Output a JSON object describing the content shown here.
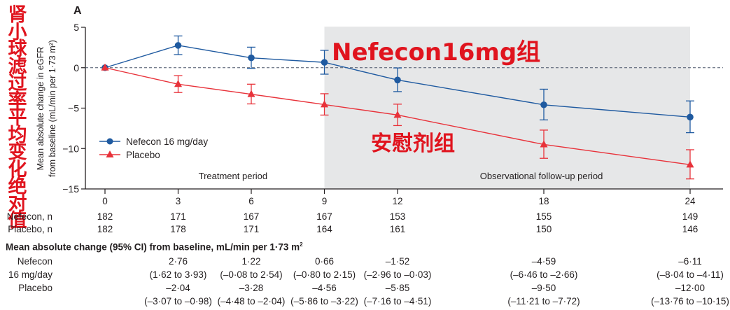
{
  "panel_label": "A",
  "side_annotation": "肾小球滤过率平均变化绝对值",
  "chart_data": {
    "type": "line",
    "title": "",
    "xlabel": "",
    "ylabel": "Mean absolute change in eGFR from baseline (mL/min per 1·73 m²)",
    "ylabel_line1": "Mean absolute change in eGFR",
    "ylabel_line2": "from baseline (mL/min per 1·73 m²)",
    "x": [
      0,
      3,
      6,
      9,
      12,
      18,
      24
    ],
    "xticks": [
      "0",
      "3",
      "6",
      "9",
      "12",
      "18",
      "24"
    ],
    "yticks": [
      "5",
      "0",
      "-5",
      "-10",
      "-15"
    ],
    "ylim": [
      -15,
      5
    ],
    "xlim": [
      0,
      24
    ],
    "reference_line": 0,
    "shaded_region": {
      "x_from": 9,
      "x_to": 24,
      "color": "#e6e7e8"
    },
    "period_labels": [
      {
        "text": "Treatment period",
        "x": 5.25
      },
      {
        "text": "Observational follow-up period",
        "x": 17.9
      }
    ],
    "legend_position": "lower-left",
    "series": [
      {
        "name": "Nefecon 16 mg/day",
        "color": "#1f5aa0",
        "marker": "circle",
        "values": [
          0,
          2.76,
          1.22,
          0.66,
          -1.52,
          -4.59,
          -6.11
        ],
        "ci_low": [
          0,
          1.62,
          -0.08,
          -0.8,
          -2.96,
          -6.46,
          -8.04
        ],
        "ci_high": [
          0,
          3.93,
          2.54,
          2.15,
          -0.03,
          -2.66,
          -4.11
        ]
      },
      {
        "name": "Placebo",
        "color": "#e8323a",
        "marker": "triangle",
        "values": [
          0,
          -2.04,
          -3.28,
          -4.56,
          -5.85,
          -9.5,
          -12.0
        ],
        "ci_low": [
          0,
          -3.07,
          -4.48,
          -5.86,
          -7.16,
          -11.21,
          -13.76
        ],
        "ci_high": [
          0,
          -0.98,
          -2.04,
          -3.22,
          -4.51,
          -7.72,
          -10.15
        ]
      }
    ],
    "annotations": [
      {
        "text": "Nefecon16mg组",
        "color": "#e0141e"
      },
      {
        "text": "安慰剂组",
        "color": "#e0141e"
      }
    ]
  },
  "legend": {
    "nefecon": "Nefecon 16 mg/day",
    "placebo": "Placebo"
  },
  "periods": {
    "treatment": "Treatment period",
    "followup": "Observational follow-up period"
  },
  "overlay": {
    "nefecon_group": "Nefecon16mg组",
    "placebo_group": "安慰剂组"
  },
  "n_table": {
    "rows": [
      {
        "label": "Nefecon, n",
        "values": [
          "182",
          "171",
          "167",
          "167",
          "153",
          "155",
          "149"
        ]
      },
      {
        "label": "Placebo, n",
        "values": [
          "182",
          "178",
          "171",
          "164",
          "161",
          "150",
          "146"
        ]
      }
    ]
  },
  "change_table": {
    "heading": "Mean absolute change (95% CI) from baseline, mL/min per 1·73 m",
    "heading_sup": "2",
    "nefecon_label_1": "Nefecon",
    "nefecon_label_2": "16 mg/day",
    "placebo_label": "Placebo",
    "nefecon_means": [
      "2·76",
      "1·22",
      "0·66",
      "–1·52",
      "–4·59",
      "–6·11"
    ],
    "nefecon_cis": [
      "(1·62 to 3·93)",
      "(–0·08 to 2·54)",
      "(–0·80 to 2·15)",
      "(–2·96 to –0·03)",
      "(–6·46 to –2·66)",
      "(–8·04 to –4·11)"
    ],
    "placebo_means": [
      "–2·04",
      "–3·28",
      "–4·56",
      "–5·85",
      "–9·50",
      "–12·00"
    ],
    "placebo_cis": [
      "(–3·07 to –0·98)",
      "(–4·48 to –2·04)",
      "(–5·86 to –3·22)",
      "(–7·16 to –4·51)",
      "(–11·21 to –7·72)",
      "(–13·76 to –10·15)"
    ]
  }
}
